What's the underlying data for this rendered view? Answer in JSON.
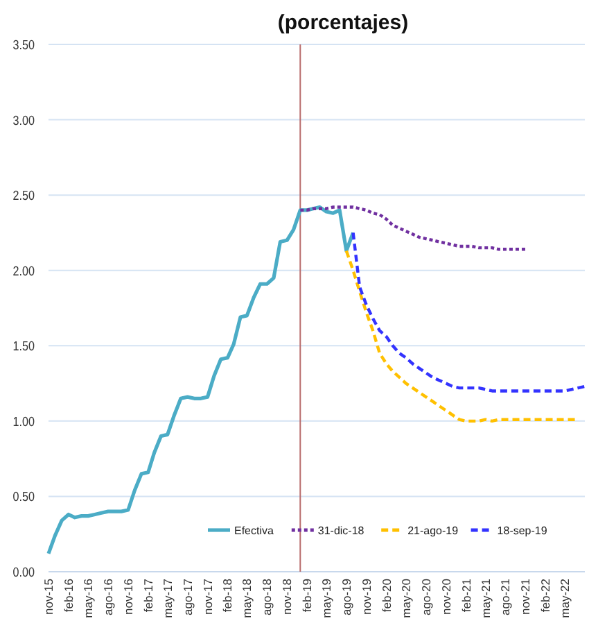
{
  "chart_data": {
    "type": "line",
    "title": "(porcentajes)",
    "xlim": [
      "2015-11",
      "2022-08"
    ],
    "xticks": [
      {
        "value": "2015-11",
        "label": "nov-15"
      },
      {
        "value": "2016-02",
        "label": "feb-16"
      },
      {
        "value": "2016-05",
        "label": "may-16"
      },
      {
        "value": "2016-08",
        "label": "ago-16"
      },
      {
        "value": "2016-11",
        "label": "nov-16"
      },
      {
        "value": "2017-02",
        "label": "feb-17"
      },
      {
        "value": "2017-05",
        "label": "may-17"
      },
      {
        "value": "2017-08",
        "label": "ago-17"
      },
      {
        "value": "2017-11",
        "label": "nov-17"
      },
      {
        "value": "2018-02",
        "label": "feb-18"
      },
      {
        "value": "2018-05",
        "label": "may-18"
      },
      {
        "value": "2018-08",
        "label": "ago-18"
      },
      {
        "value": "2018-11",
        "label": "nov-18"
      },
      {
        "value": "2019-02",
        "label": "feb-19"
      },
      {
        "value": "2019-05",
        "label": "may-19"
      },
      {
        "value": "2019-08",
        "label": "ago-19"
      },
      {
        "value": "2019-11",
        "label": "nov-19"
      },
      {
        "value": "2020-02",
        "label": "feb-20"
      },
      {
        "value": "2020-05",
        "label": "may-20"
      },
      {
        "value": "2020-08",
        "label": "ago-20"
      },
      {
        "value": "2020-11",
        "label": "nov-20"
      },
      {
        "value": "2021-02",
        "label": "feb-21"
      },
      {
        "value": "2021-05",
        "label": "may-21"
      },
      {
        "value": "2021-08",
        "label": "ago-21"
      },
      {
        "value": "2021-11",
        "label": "nov-21"
      },
      {
        "value": "2022-02",
        "label": "feb-22"
      },
      {
        "value": "2022-05",
        "label": "may-22"
      }
    ],
    "ylim": [
      0,
      3.5
    ],
    "yticks": [
      {
        "value": 0,
        "label": "0.00"
      },
      {
        "value": 0.5,
        "label": "0.50"
      },
      {
        "value": 1,
        "label": "1.00"
      },
      {
        "value": 1.5,
        "label": "1.50"
      },
      {
        "value": 2,
        "label": "2.00"
      },
      {
        "value": 2.5,
        "label": "2.50"
      },
      {
        "value": 3,
        "label": "3.00"
      },
      {
        "value": 3.5,
        "label": "3.50"
      }
    ],
    "grid": "y",
    "legend": "bottom",
    "marker": "none",
    "ref_lines": [
      {
        "axis": "x",
        "value": "2019-01",
        "color": "#b86b6b"
      }
    ],
    "series": [
      {
        "name": "Efectiva",
        "color": "#4bacc6",
        "line_style": "solid",
        "x": [
          "2015-11",
          "2015-12",
          "2016-01",
          "2016-02",
          "2016-03",
          "2016-04",
          "2016-05",
          "2016-06",
          "2016-07",
          "2016-08",
          "2016-09",
          "2016-10",
          "2016-11",
          "2016-12",
          "2017-01",
          "2017-02",
          "2017-03",
          "2017-04",
          "2017-05",
          "2017-06",
          "2017-07",
          "2017-08",
          "2017-09",
          "2017-10",
          "2017-11",
          "2017-12",
          "2018-01",
          "2018-02",
          "2018-03",
          "2018-04",
          "2018-05",
          "2018-06",
          "2018-07",
          "2018-08",
          "2018-09",
          "2018-10",
          "2018-11",
          "2018-12",
          "2019-01",
          "2019-02",
          "2019-03",
          "2019-04",
          "2019-05",
          "2019-06",
          "2019-07",
          "2019-08",
          "2019-09"
        ],
        "values": [
          0.12,
          0.24,
          0.34,
          0.38,
          0.36,
          0.37,
          0.37,
          0.38,
          0.39,
          0.4,
          0.4,
          0.4,
          0.41,
          0.54,
          0.65,
          0.66,
          0.79,
          0.9,
          0.91,
          1.04,
          1.15,
          1.16,
          1.15,
          1.15,
          1.16,
          1.3,
          1.41,
          1.42,
          1.51,
          1.69,
          1.7,
          1.82,
          1.91,
          1.91,
          1.95,
          2.19,
          2.2,
          2.27,
          2.4,
          2.4,
          2.41,
          2.42,
          2.39,
          2.38,
          2.4,
          2.13,
          2.25
        ]
      },
      {
        "name": "31-dic-18",
        "color": "#7030a0",
        "line_style": "dotted",
        "x": [
          "2019-01",
          "2019-02",
          "2019-03",
          "2019-04",
          "2019-05",
          "2019-06",
          "2019-07",
          "2019-08",
          "2019-09",
          "2019-10",
          "2019-11",
          "2019-12",
          "2020-01",
          "2020-02",
          "2020-03",
          "2020-04",
          "2020-05",
          "2020-06",
          "2020-07",
          "2020-08",
          "2020-09",
          "2020-10",
          "2020-11",
          "2020-12",
          "2021-01",
          "2021-02",
          "2021-03",
          "2021-04",
          "2021-05",
          "2021-06",
          "2021-07",
          "2021-08",
          "2021-09",
          "2021-10",
          "2021-11"
        ],
        "values": [
          2.4,
          2.4,
          2.41,
          2.41,
          2.41,
          2.42,
          2.42,
          2.42,
          2.42,
          2.41,
          2.4,
          2.38,
          2.37,
          2.34,
          2.3,
          2.28,
          2.26,
          2.24,
          2.22,
          2.21,
          2.2,
          2.19,
          2.18,
          2.17,
          2.16,
          2.16,
          2.16,
          2.15,
          2.15,
          2.15,
          2.14,
          2.14,
          2.14,
          2.14,
          2.14
        ]
      },
      {
        "name": "21-ago-19",
        "color": "#ffc000",
        "line_style": "dashed",
        "x": [
          "2019-08",
          "2019-09",
          "2019-10",
          "2019-11",
          "2019-12",
          "2020-01",
          "2020-02",
          "2020-03",
          "2020-04",
          "2020-05",
          "2020-06",
          "2020-07",
          "2020-08",
          "2020-09",
          "2020-10",
          "2020-11",
          "2020-12",
          "2021-01",
          "2021-02",
          "2021-03",
          "2021-04",
          "2021-05",
          "2021-06",
          "2021-07",
          "2021-08",
          "2021-09",
          "2021-10",
          "2021-11",
          "2021-12",
          "2022-01",
          "2022-02",
          "2022-03",
          "2022-04",
          "2022-05",
          "2022-06",
          "2022-07"
        ],
        "values": [
          2.13,
          2.0,
          1.86,
          1.72,
          1.6,
          1.45,
          1.38,
          1.33,
          1.29,
          1.25,
          1.22,
          1.19,
          1.16,
          1.13,
          1.1,
          1.07,
          1.04,
          1.01,
          1.0,
          1.0,
          1.0,
          1.01,
          1.0,
          1.01,
          1.01,
          1.01,
          1.01,
          1.01,
          1.01,
          1.01,
          1.01,
          1.01,
          1.01,
          1.01,
          1.01,
          1.01
        ]
      },
      {
        "name": "18-sep-19",
        "color": "#3333ff",
        "line_style": "dashed",
        "x": [
          "2019-09",
          "2019-10",
          "2019-11",
          "2019-12",
          "2020-01",
          "2020-02",
          "2020-03",
          "2020-04",
          "2020-05",
          "2020-06",
          "2020-07",
          "2020-08",
          "2020-09",
          "2020-10",
          "2020-11",
          "2020-12",
          "2021-01",
          "2021-02",
          "2021-03",
          "2021-04",
          "2021-05",
          "2021-06",
          "2021-07",
          "2021-08",
          "2021-09",
          "2021-10",
          "2021-11",
          "2021-12",
          "2022-01",
          "2022-02",
          "2022-03",
          "2022-04",
          "2022-05",
          "2022-06",
          "2022-07",
          "2022-08"
        ],
        "values": [
          2.25,
          1.89,
          1.77,
          1.68,
          1.6,
          1.56,
          1.5,
          1.45,
          1.42,
          1.38,
          1.35,
          1.32,
          1.29,
          1.27,
          1.25,
          1.23,
          1.22,
          1.22,
          1.22,
          1.22,
          1.21,
          1.2,
          1.2,
          1.2,
          1.2,
          1.2,
          1.2,
          1.2,
          1.2,
          1.2,
          1.2,
          1.2,
          1.2,
          1.21,
          1.22,
          1.23
        ]
      }
    ]
  }
}
